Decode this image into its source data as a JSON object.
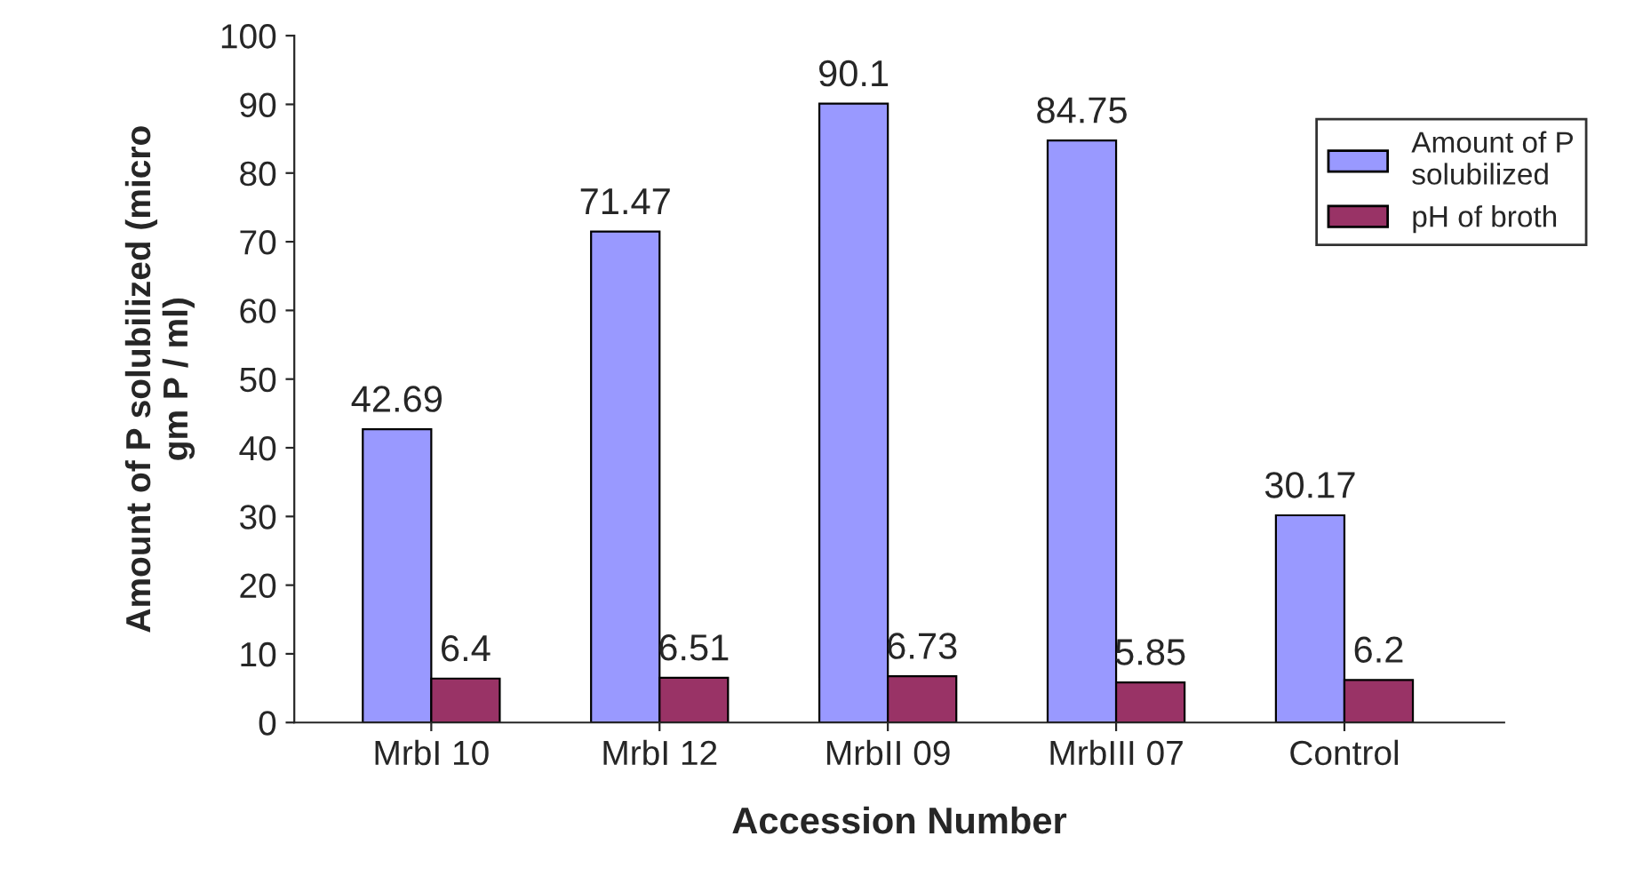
{
  "chart_data": {
    "type": "bar",
    "categories": [
      "MrbI 10",
      "MrbI 12",
      "MrbII 09",
      "MrbIII 07",
      "Control"
    ],
    "series": [
      {
        "name": "Amount of P\nsolubilized",
        "color": "#9999ff",
        "values": [
          42.69,
          71.47,
          90.1,
          84.75,
          30.17
        ]
      },
      {
        "name": "pH of broth",
        "color": "#993366",
        "values": [
          6.4,
          6.51,
          6.73,
          5.85,
          6.2
        ]
      }
    ],
    "xlabel": "Accession Number",
    "ylabel": "Amount of P solubilized (micro\ngm P / ml)",
    "ylim": [
      0,
      100
    ],
    "yticks": [
      0,
      10,
      20,
      30,
      40,
      50,
      60,
      70,
      80,
      90,
      100
    ],
    "data_labels": true,
    "grid": false,
    "legend": "top right"
  }
}
